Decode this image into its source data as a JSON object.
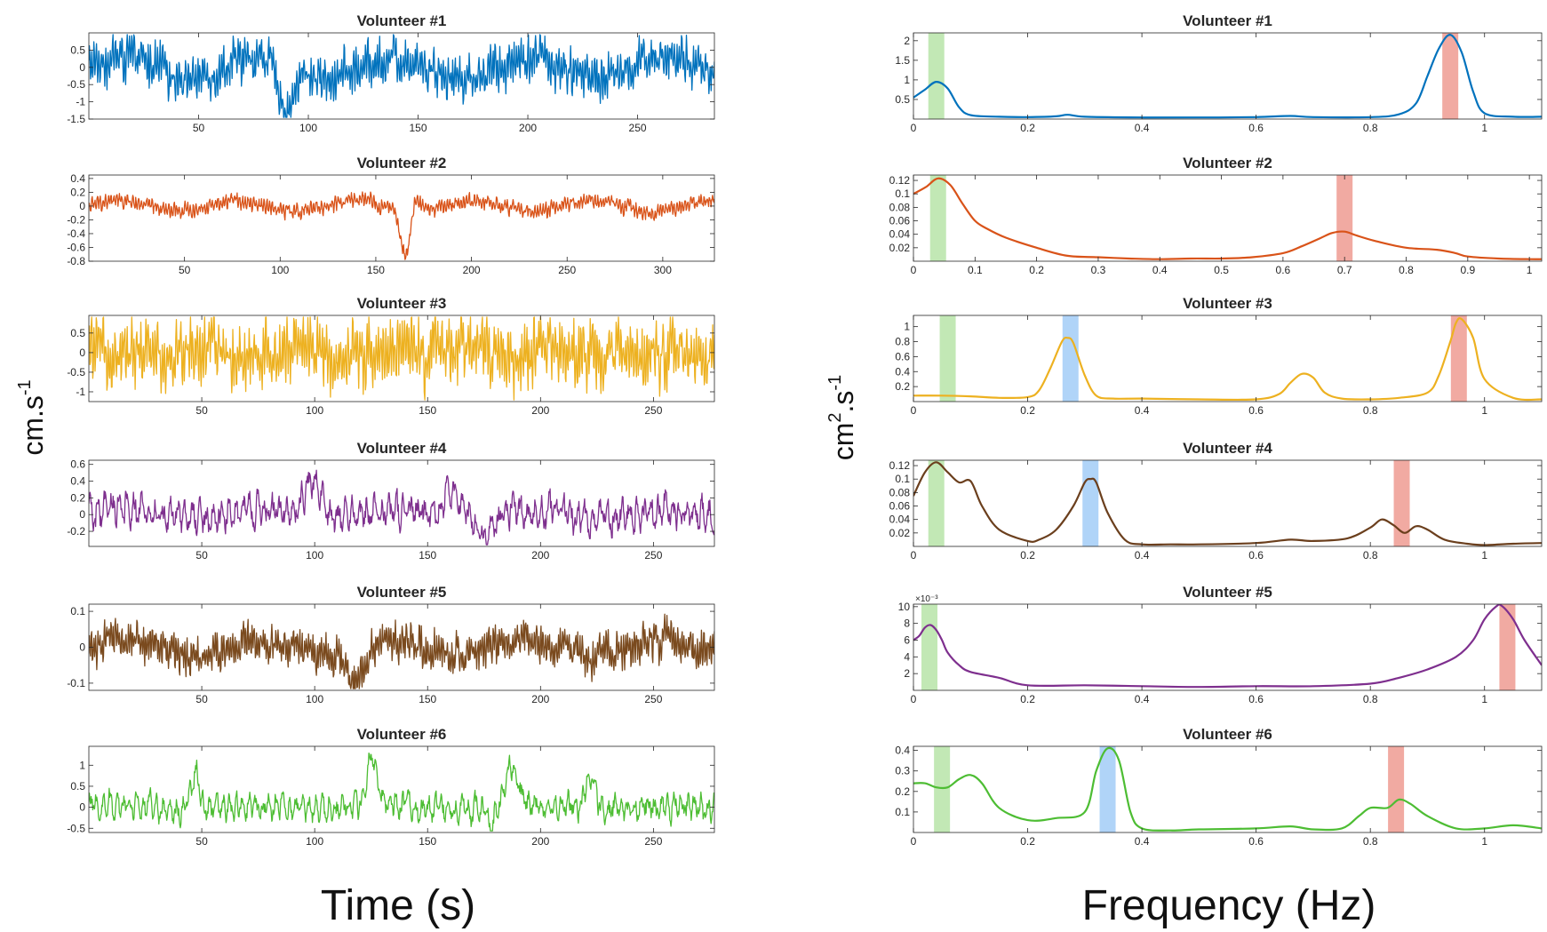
{
  "figure": {
    "time_label": "Time (s)",
    "freq_label": "Frequency (Hz)",
    "time_ylabel": {
      "base": "cm.s",
      "sup": "-1"
    },
    "freq_ylabel": {
      "base1": "cm",
      "sup1": "2",
      "base2": ".s",
      "sup2": "-1"
    }
  },
  "chart_data": [
    {
      "type": "line",
      "panel": "time",
      "title": "Volunteer #1",
      "color": "#0072BD",
      "xlim": [
        0,
        285
      ],
      "ylim": [
        -1.5,
        1.0
      ],
      "xticks": [
        50,
        100,
        150,
        200,
        250
      ],
      "yticks": [
        -1.5,
        -1,
        -0.5,
        0,
        0.5
      ],
      "ytick_labels": [
        "-1.5",
        "-1",
        "-0.5",
        "0",
        "0.5"
      ],
      "amp": 0.42,
      "freq": 0.93,
      "drift_period": 62,
      "drift_amp": 0.3,
      "events": [
        [
          90,
          -1.3,
          5
        ]
      ]
    },
    {
      "type": "line",
      "panel": "time",
      "title": "Volunteer #2",
      "color": "#D95319",
      "xlim": [
        0,
        327
      ],
      "ylim": [
        -0.8,
        0.45
      ],
      "xticks": [
        50,
        100,
        150,
        200,
        250,
        300
      ],
      "yticks": [
        -0.8,
        -0.6,
        -0.4,
        -0.2,
        0,
        0.2,
        0.4
      ],
      "ytick_labels": [
        "-0.8",
        "-0.6",
        "-0.4",
        "-0.2",
        "0",
        "0.2",
        "0.4"
      ],
      "amp": 0.07,
      "freq": 0.7,
      "drift_period": 62,
      "drift_amp": 0.08,
      "events": [
        [
          166,
          -0.75,
          4
        ],
        [
          170,
          0.32,
          4
        ]
      ]
    },
    {
      "type": "line",
      "panel": "time",
      "title": "Volunteer #3",
      "color": "#EDB120",
      "xlim": [
        0,
        277
      ],
      "ylim": [
        -1.25,
        0.95
      ],
      "xticks": [
        50,
        100,
        150,
        200,
        250
      ],
      "yticks": [
        -1,
        -0.5,
        0,
        0.5
      ],
      "ytick_labels": [
        "-1",
        "-0.5",
        "0",
        "0.5"
      ],
      "amp": 0.55,
      "freq": 0.96,
      "drift_period": 40,
      "drift_amp": 0.08,
      "events": []
    },
    {
      "type": "line",
      "panel": "time",
      "title": "Volunteer #4",
      "color": "#7E2F8E",
      "xlim": [
        0,
        277
      ],
      "ylim": [
        -0.38,
        0.65
      ],
      "xticks": [
        50,
        100,
        150,
        200,
        250
      ],
      "yticks": [
        -0.2,
        0,
        0.2,
        0.4,
        0.6
      ],
      "ytick_labels": [
        "-0.2",
        "0",
        "0.2",
        "0.4",
        "0.6"
      ],
      "amp": 0.14,
      "freq": 0.31,
      "drift_period": 60,
      "drift_amp": 0.05,
      "events": [
        [
          99,
          0.45,
          5
        ],
        [
          160,
          0.38,
          4
        ],
        [
          176,
          -0.25,
          4
        ]
      ]
    },
    {
      "type": "line",
      "panel": "time",
      "title": "Volunteer #5",
      "color": "#7A4A1E",
      "xlim": [
        0,
        277
      ],
      "ylim": [
        -0.12,
        0.12
      ],
      "xticks": [
        50,
        100,
        150,
        200,
        250
      ],
      "yticks": [
        -0.1,
        0,
        0.1
      ],
      "ytick_labels": [
        "-0.1",
        "0",
        "0.1"
      ],
      "amp": 0.035,
      "freq": 1.04,
      "drift_period": 60,
      "drift_amp": 0.02,
      "events": [
        [
          118,
          -0.09,
          6
        ]
      ]
    },
    {
      "type": "line",
      "panel": "time",
      "title": "Volunteer #6",
      "color": "#4DBD33",
      "xlim": [
        0,
        277
      ],
      "ylim": [
        -0.6,
        1.45
      ],
      "xticks": [
        50,
        100,
        150,
        200,
        250
      ],
      "yticks": [
        -0.5,
        0,
        0.5,
        1
      ],
      "ytick_labels": [
        "-0.5",
        "0",
        "0.5",
        "1"
      ],
      "amp": 0.22,
      "freq": 0.34,
      "drift_period": 60,
      "drift_amp": 0.06,
      "events": [
        [
          48,
          1.1,
          3
        ],
        [
          50,
          -0.5,
          2
        ],
        [
          125,
          1.1,
          3
        ],
        [
          187,
          0.9,
          4
        ],
        [
          178,
          -0.55,
          2
        ],
        [
          222,
          0.9,
          3
        ]
      ]
    },
    {
      "type": "line",
      "panel": "freq",
      "title": "Volunteer #1",
      "color": "#0072BD",
      "xlim": [
        0,
        1.1
      ],
      "ylim": [
        0,
        2.2
      ],
      "xticks": [
        0,
        0.2,
        0.4,
        0.6,
        0.8,
        1
      ],
      "xtick_labels": [
        "0",
        "0.2",
        "0.4",
        "0.6",
        "0.8",
        "1"
      ],
      "yticks": [
        0.5,
        1,
        1.5,
        2
      ],
      "ytick_labels": [
        "0.5",
        "1",
        "1.5",
        "2"
      ],
      "x": [
        0,
        0.02,
        0.04,
        0.06,
        0.08,
        0.1,
        0.15,
        0.2,
        0.25,
        0.27,
        0.3,
        0.4,
        0.5,
        0.6,
        0.66,
        0.7,
        0.8,
        0.85,
        0.88,
        0.9,
        0.92,
        0.94,
        0.96,
        0.98,
        1.0,
        1.05,
        1.1
      ],
      "y": [
        0.55,
        0.75,
        0.95,
        0.78,
        0.3,
        0.1,
        0.06,
        0.05,
        0.07,
        0.11,
        0.06,
        0.04,
        0.04,
        0.05,
        0.08,
        0.05,
        0.05,
        0.12,
        0.4,
        1.1,
        1.8,
        2.15,
        1.7,
        0.7,
        0.15,
        0.06,
        0.06
      ],
      "bands": [
        {
          "center": 0.04,
          "color": "green"
        },
        {
          "center": 0.94,
          "color": "red"
        }
      ]
    },
    {
      "type": "line",
      "panel": "freq",
      "title": "Volunteer #2",
      "color": "#D95319",
      "xlim": [
        0,
        1.02
      ],
      "ylim": [
        0,
        0.128
      ],
      "xticks": [
        0,
        0.1,
        0.2,
        0.3,
        0.4,
        0.5,
        0.6,
        0.7,
        0.8,
        0.9,
        1
      ],
      "xtick_labels": [
        "0",
        "0.1",
        "0.2",
        "0.3",
        "0.4",
        "0.5",
        "0.6",
        "0.7",
        "0.8",
        "0.9",
        "1"
      ],
      "yticks": [
        0.02,
        0.04,
        0.06,
        0.08,
        0.1,
        0.12
      ],
      "ytick_labels": [
        "0.02",
        "0.04",
        "0.06",
        "0.08",
        "0.1",
        "0.12"
      ],
      "x": [
        0,
        0.02,
        0.04,
        0.06,
        0.08,
        0.1,
        0.12,
        0.15,
        0.2,
        0.25,
        0.3,
        0.35,
        0.4,
        0.45,
        0.5,
        0.55,
        0.6,
        0.63,
        0.66,
        0.68,
        0.7,
        0.72,
        0.75,
        0.8,
        0.85,
        0.88,
        0.9,
        0.95,
        1.0,
        1.02
      ],
      "y": [
        0.1,
        0.11,
        0.123,
        0.113,
        0.085,
        0.06,
        0.048,
        0.035,
        0.02,
        0.008,
        0.006,
        0.004,
        0.003,
        0.004,
        0.004,
        0.006,
        0.012,
        0.022,
        0.034,
        0.042,
        0.044,
        0.038,
        0.03,
        0.02,
        0.017,
        0.012,
        0.007,
        0.004,
        0.003,
        0.003
      ],
      "bands": [
        {
          "center": 0.04,
          "color": "green"
        },
        {
          "center": 0.7,
          "color": "red"
        }
      ]
    },
    {
      "type": "line",
      "panel": "freq",
      "title": "Volunteer #3",
      "color": "#EDB120",
      "xlim": [
        0,
        1.1
      ],
      "ylim": [
        0,
        1.15
      ],
      "xticks": [
        0,
        0.2,
        0.4,
        0.6,
        0.8,
        1
      ],
      "xtick_labels": [
        "0",
        "0.2",
        "0.4",
        "0.6",
        "0.8",
        "1"
      ],
      "yticks": [
        0.2,
        0.4,
        0.6,
        0.8,
        1
      ],
      "ytick_labels": [
        "0.2",
        "0.4",
        "0.6",
        "0.8",
        "1"
      ],
      "x": [
        0,
        0.05,
        0.1,
        0.15,
        0.2,
        0.22,
        0.24,
        0.26,
        0.27,
        0.28,
        0.3,
        0.32,
        0.35,
        0.4,
        0.5,
        0.6,
        0.64,
        0.66,
        0.68,
        0.7,
        0.72,
        0.75,
        0.8,
        0.85,
        0.9,
        0.92,
        0.94,
        0.95,
        0.96,
        0.98,
        1.0,
        1.05,
        1.1
      ],
      "y": [
        0.08,
        0.08,
        0.07,
        0.05,
        0.06,
        0.15,
        0.45,
        0.8,
        0.85,
        0.78,
        0.35,
        0.08,
        0.04,
        0.04,
        0.03,
        0.03,
        0.1,
        0.25,
        0.37,
        0.32,
        0.12,
        0.04,
        0.03,
        0.05,
        0.12,
        0.35,
        0.8,
        1.05,
        1.1,
        0.85,
        0.3,
        0.05,
        0.03
      ],
      "bands": [
        {
          "center": 0.06,
          "color": "green"
        },
        {
          "center": 0.275,
          "color": "blue"
        },
        {
          "center": 0.955,
          "color": "red"
        }
      ]
    },
    {
      "type": "line",
      "panel": "freq",
      "title": "Volunteer #4",
      "color": "#6B3F1D",
      "xlim": [
        0,
        1.1
      ],
      "ylim": [
        0,
        0.128
      ],
      "xticks": [
        0,
        0.2,
        0.4,
        0.6,
        0.8,
        1
      ],
      "xtick_labels": [
        "0",
        "0.2",
        "0.4",
        "0.6",
        "0.8",
        "1"
      ],
      "yticks": [
        0.02,
        0.04,
        0.06,
        0.08,
        0.1,
        0.12
      ],
      "ytick_labels": [
        "0.02",
        "0.04",
        "0.06",
        "0.08",
        "0.1",
        "0.12"
      ],
      "x": [
        0,
        0.02,
        0.04,
        0.06,
        0.08,
        0.1,
        0.12,
        0.15,
        0.2,
        0.22,
        0.25,
        0.28,
        0.3,
        0.31,
        0.32,
        0.34,
        0.37,
        0.4,
        0.45,
        0.5,
        0.6,
        0.66,
        0.7,
        0.76,
        0.8,
        0.82,
        0.84,
        0.86,
        0.88,
        0.9,
        0.93,
        0.97,
        1.0,
        1.05,
        1.1
      ],
      "y": [
        0.075,
        0.11,
        0.125,
        0.11,
        0.095,
        0.097,
        0.06,
        0.025,
        0.008,
        0.01,
        0.025,
        0.06,
        0.095,
        0.1,
        0.095,
        0.05,
        0.01,
        0.003,
        0.003,
        0.003,
        0.005,
        0.01,
        0.008,
        0.012,
        0.028,
        0.04,
        0.032,
        0.02,
        0.03,
        0.025,
        0.01,
        0.004,
        0.002,
        0.004,
        0.005
      ],
      "bands": [
        {
          "center": 0.04,
          "color": "green"
        },
        {
          "center": 0.31,
          "color": "blue"
        },
        {
          "center": 0.855,
          "color": "red"
        }
      ]
    },
    {
      "type": "line",
      "panel": "freq",
      "title": "Volunteer #5",
      "color": "#7E2F8E",
      "xlim": [
        0,
        1.1
      ],
      "ylim": [
        0,
        10.3
      ],
      "ylabel_exponent": "×10⁻³",
      "xticks": [
        0,
        0.2,
        0.4,
        0.6,
        0.8,
        1
      ],
      "xtick_labels": [
        "0",
        "0.2",
        "0.4",
        "0.6",
        "0.8",
        "1"
      ],
      "yticks": [
        2,
        4,
        6,
        8,
        10
      ],
      "ytick_labels": [
        "2",
        "4",
        "6",
        "8",
        "10"
      ],
      "x": [
        0,
        0.01,
        0.02,
        0.03,
        0.04,
        0.05,
        0.06,
        0.08,
        0.1,
        0.15,
        0.2,
        0.3,
        0.4,
        0.5,
        0.6,
        0.7,
        0.8,
        0.85,
        0.9,
        0.95,
        0.98,
        1.0,
        1.02,
        1.03,
        1.05,
        1.07,
        1.1
      ],
      "y": [
        6,
        6.5,
        7.5,
        7.8,
        7.2,
        6,
        4.5,
        3,
        2.2,
        1.5,
        0.6,
        0.6,
        0.5,
        0.4,
        0.5,
        0.5,
        0.8,
        1.5,
        2.5,
        4,
        6,
        8.5,
        10,
        10.1,
        8.5,
        6,
        3
      ],
      "bands": [
        {
          "center": 0.028,
          "color": "green"
        },
        {
          "center": 1.04,
          "color": "red"
        }
      ]
    },
    {
      "type": "line",
      "panel": "freq",
      "title": "Volunteer #6",
      "color": "#4DBD33",
      "xlim": [
        0,
        1.1
      ],
      "ylim": [
        0,
        0.42
      ],
      "xticks": [
        0,
        0.2,
        0.4,
        0.6,
        0.8,
        1
      ],
      "xtick_labels": [
        "0",
        "0.2",
        "0.4",
        "0.6",
        "0.8",
        "1"
      ],
      "yticks": [
        0.1,
        0.2,
        0.3,
        0.4
      ],
      "ytick_labels": [
        "0.1",
        "0.2",
        "0.3",
        "0.4"
      ],
      "x": [
        0,
        0.02,
        0.04,
        0.06,
        0.08,
        0.1,
        0.12,
        0.15,
        0.2,
        0.25,
        0.3,
        0.32,
        0.34,
        0.36,
        0.38,
        0.4,
        0.45,
        0.5,
        0.6,
        0.66,
        0.7,
        0.75,
        0.78,
        0.8,
        0.83,
        0.85,
        0.87,
        0.9,
        0.95,
        1.0,
        1.05,
        1.1
      ],
      "y": [
        0.24,
        0.24,
        0.22,
        0.22,
        0.26,
        0.28,
        0.24,
        0.12,
        0.06,
        0.07,
        0.1,
        0.3,
        0.41,
        0.35,
        0.1,
        0.02,
        0.01,
        0.015,
        0.02,
        0.03,
        0.015,
        0.02,
        0.08,
        0.12,
        0.12,
        0.16,
        0.14,
        0.08,
        0.02,
        0.02,
        0.035,
        0.02
      ],
      "bands": [
        {
          "center": 0.05,
          "color": "green"
        },
        {
          "center": 0.34,
          "color": "blue"
        },
        {
          "center": 0.845,
          "color": "red"
        }
      ]
    }
  ]
}
